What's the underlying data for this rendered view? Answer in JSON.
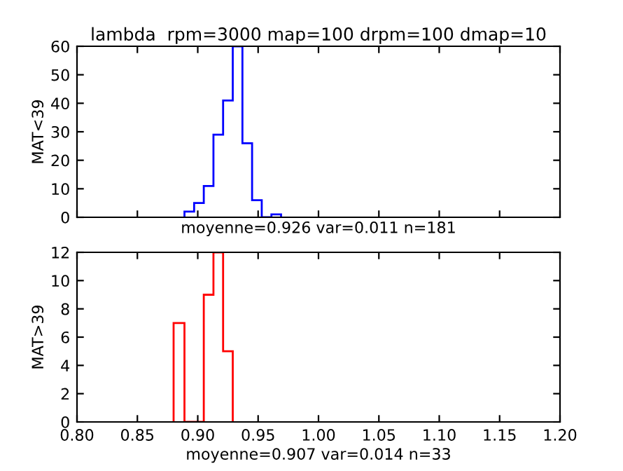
{
  "chart_data": [
    {
      "type": "histogram",
      "title": "lambda  rpm=3000 map=100 drpm=100 dmap=10",
      "xlabel": "moyenne=0.926 var=0.011 n=181",
      "ylabel": "MAT<39",
      "bins": [
        0.889,
        0.897,
        0.905,
        0.913,
        0.921,
        0.929,
        0.937,
        0.945,
        0.953,
        0.961,
        0.969
      ],
      "values": [
        2,
        5,
        11,
        29,
        41,
        60,
        26,
        6,
        0,
        1
      ],
      "color": "#0000ff",
      "xlim": [
        0.8,
        1.2
      ],
      "xticks": [
        0.8,
        0.85,
        0.9,
        0.95,
        1.0,
        1.05,
        1.1,
        1.15,
        1.2
      ],
      "ylim": [
        0,
        60
      ],
      "yticks": [
        0,
        10,
        20,
        30,
        40,
        50,
        60
      ],
      "tick_labels": "y",
      "grid": false
    },
    {
      "type": "histogram",
      "xlabel": "moyenne=0.907 var=0.014 n=33",
      "ylabel": "MAT>39",
      "bins": [
        0.88,
        0.889,
        0.897,
        0.905,
        0.913,
        0.921,
        0.929
      ],
      "values": [
        7,
        0,
        0,
        9,
        12,
        5
      ],
      "color": "#ff0000",
      "xlim": [
        0.8,
        1.2
      ],
      "xticks": [
        {
          "value": 0.8,
          "label": "0.80"
        },
        {
          "value": 0.85,
          "label": "0.85"
        },
        {
          "value": 0.9,
          "label": "0.90"
        },
        {
          "value": 0.95,
          "label": "0.95"
        },
        {
          "value": 1.0,
          "label": "1.00"
        },
        {
          "value": 1.05,
          "label": "1.05"
        },
        {
          "value": 1.1,
          "label": "1.10"
        },
        {
          "value": 1.15,
          "label": "1.15"
        },
        {
          "value": 1.2,
          "label": "1.20"
        }
      ],
      "ylim": [
        0,
        12
      ],
      "yticks": [
        0,
        2,
        4,
        6,
        8,
        10,
        12
      ],
      "grid": false
    }
  ]
}
